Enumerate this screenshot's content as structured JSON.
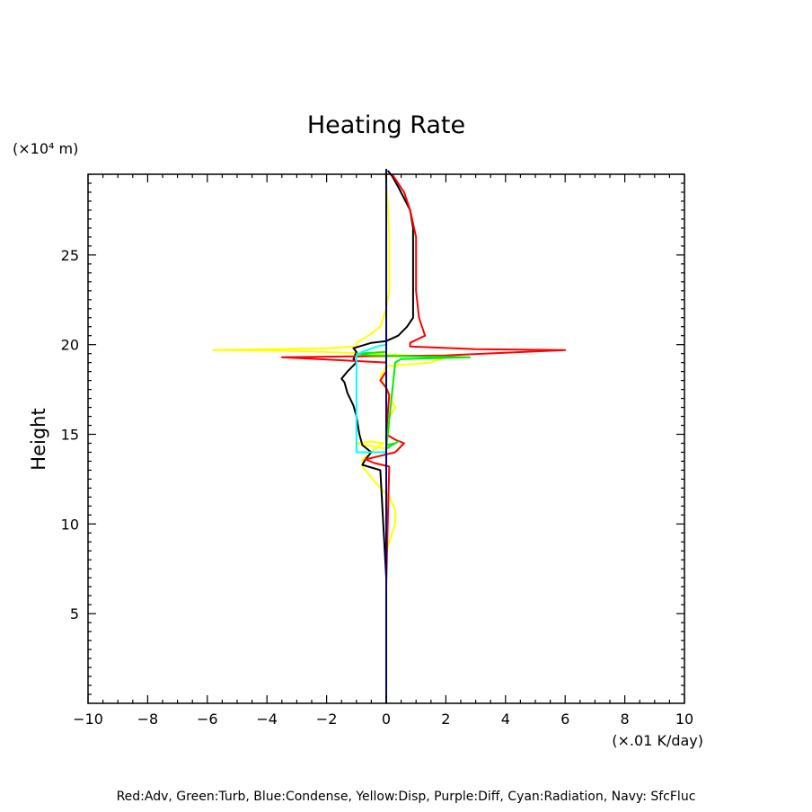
{
  "chart_data": {
    "type": "line",
    "title": "Heating Rate",
    "ylabel": "Height",
    "yunit": "(×10⁴ m)",
    "xunit": "(×.01 K/day)",
    "xlim": [
      -10,
      10
    ],
    "ylim": [
      0,
      29.5
    ],
    "xticks": [
      "−10",
      "−8",
      "−6",
      "−4",
      "−2",
      "0",
      "2",
      "4",
      "6",
      "8",
      "10"
    ],
    "yticks": [
      "5",
      "10",
      "15",
      "20",
      "25"
    ],
    "footnote": "Red:Adv, Green:Turb, Blue:Condense, Yellow:Disp, Purple:Diff, Cyan:Radiation, Navy: SfcFluc",
    "grid": false,
    "series": [
      {
        "name": "Yellow:Disp",
        "color": "#ffff00",
        "points": [
          [
            0,
            8.4
          ],
          [
            0.1,
            9
          ],
          [
            0.3,
            10
          ],
          [
            0.3,
            10.8
          ],
          [
            0.1,
            11.5
          ],
          [
            -0.3,
            12.2
          ],
          [
            -0.8,
            13.2
          ],
          [
            -0.8,
            13.6
          ],
          [
            -0.5,
            14
          ],
          [
            -0.3,
            14.3
          ],
          [
            -0.1,
            14.5
          ],
          [
            -0.5,
            14.6
          ],
          [
            -1,
            14.5
          ],
          [
            -0.7,
            14.4
          ],
          [
            0,
            14.2
          ],
          [
            0.1,
            15.5
          ],
          [
            0.1,
            16
          ],
          [
            0.3,
            16.5
          ],
          [
            0,
            17.4
          ],
          [
            -0.1,
            17.9
          ],
          [
            -0.2,
            18.2
          ],
          [
            0,
            18.8
          ],
          [
            1.5,
            19.0
          ],
          [
            2,
            19.3
          ],
          [
            -0.5,
            19.5
          ],
          [
            -3,
            19.65
          ],
          [
            -5.8,
            19.7
          ],
          [
            -2,
            19.8
          ],
          [
            -1,
            19.9
          ],
          [
            -1,
            20.1
          ],
          [
            -0.6,
            20.5
          ],
          [
            -0.2,
            21
          ],
          [
            0,
            22
          ],
          [
            0.1,
            23
          ],
          [
            0.1,
            26
          ],
          [
            0.05,
            28
          ],
          [
            0,
            29.2
          ],
          [
            -0.05,
            29.6
          ]
        ]
      },
      {
        "name": "Black",
        "color": "#000000",
        "points": [
          [
            0,
            6.6
          ],
          [
            0,
            7
          ],
          [
            -0.2,
            13
          ],
          [
            -0.8,
            13.3
          ],
          [
            -0.7,
            13.6
          ],
          [
            -0.5,
            14
          ],
          [
            -0.8,
            14.4
          ],
          [
            -0.9,
            15
          ],
          [
            -1,
            16
          ],
          [
            -1.1,
            16.6
          ],
          [
            -1.3,
            17.3
          ],
          [
            -1.4,
            17.9
          ],
          [
            -1.5,
            18.1
          ],
          [
            -1.3,
            18.5
          ],
          [
            -1,
            19
          ],
          [
            -1.1,
            19.2
          ],
          [
            -1.0,
            19.6
          ],
          [
            -1.1,
            19.8
          ],
          [
            -0.9,
            19.9
          ],
          [
            -0.5,
            20.1
          ],
          [
            0,
            20.2
          ],
          [
            0.4,
            20.5
          ],
          [
            0.7,
            21
          ],
          [
            0.9,
            21.5
          ],
          [
            0.9,
            22.5
          ],
          [
            0.9,
            25
          ],
          [
            0.9,
            26.5
          ],
          [
            0.8,
            27.5
          ],
          [
            0.4,
            28.8
          ],
          [
            0.2,
            29.4
          ],
          [
            0.05,
            29.7
          ]
        ]
      },
      {
        "name": "Red:Adv",
        "color": "#ff0000",
        "points": [
          [
            0,
            6.6
          ],
          [
            0.1,
            13.2
          ],
          [
            -0.4,
            13.4
          ],
          [
            -0.7,
            13.6
          ],
          [
            0.3,
            14
          ],
          [
            0.6,
            14.5
          ],
          [
            0.3,
            14.7
          ],
          [
            0,
            15
          ],
          [
            0.1,
            17.2
          ],
          [
            0,
            17.6
          ],
          [
            -0.2,
            18
          ],
          [
            0,
            18.5
          ],
          [
            0,
            19
          ],
          [
            -3.5,
            19.3
          ],
          [
            -1,
            19.35
          ],
          [
            2,
            19.4
          ],
          [
            6,
            19.7
          ],
          [
            3,
            19.75
          ],
          [
            0.8,
            19.9
          ],
          [
            0.8,
            20.1
          ],
          [
            1.3,
            20.5
          ],
          [
            1.2,
            21
          ],
          [
            1.1,
            21.5
          ],
          [
            1,
            23
          ],
          [
            1,
            26
          ],
          [
            0.8,
            27.5
          ],
          [
            0.6,
            28.5
          ],
          [
            0.2,
            29.5
          ]
        ]
      },
      {
        "name": "Green:Turb",
        "color": "#00ee00",
        "points": [
          [
            0,
            14.4
          ],
          [
            0.3,
            14.5
          ],
          [
            0.4,
            14.6
          ],
          [
            0.2,
            14.4
          ],
          [
            0,
            14.2
          ],
          [
            0.3,
            19
          ],
          [
            0.5,
            19.2
          ],
          [
            2.8,
            19.3
          ],
          [
            1,
            19.35
          ],
          [
            -0.5,
            19.4
          ],
          [
            -1,
            19.5
          ],
          [
            -0.5,
            19.55
          ],
          [
            0,
            19.6
          ]
        ]
      },
      {
        "name": "Cyan:Radiation",
        "color": "#00ffff",
        "points": [
          [
            0,
            14
          ],
          [
            -1,
            14
          ],
          [
            -1,
            19.4
          ],
          [
            -0.8,
            19.6
          ],
          [
            -0.3,
            19.9
          ],
          [
            0,
            20
          ]
        ]
      },
      {
        "name": "Navy: SfcFluc",
        "color": "#000080",
        "points": [
          [
            0,
            0
          ],
          [
            0,
            29.8
          ]
        ]
      }
    ]
  }
}
